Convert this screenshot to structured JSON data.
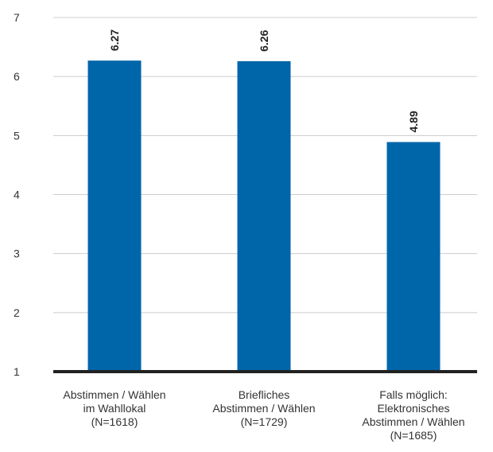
{
  "chart_data": {
    "type": "bar",
    "categories": [
      [
        "Abstimmen / Wählen",
        "im Wahllokal",
        "(N=1618)"
      ],
      [
        "Briefliches",
        "Abstimmen / Wählen",
        "(N=1729)"
      ],
      [
        "Falls möglich:",
        "Elektronisches",
        "Abstimmen / Wählen",
        "(N=1685)"
      ]
    ],
    "values": [
      6.27,
      6.26,
      4.89
    ],
    "data_labels": [
      "6.27",
      "6.26",
      "4.89"
    ],
    "y_ticks": [
      "1",
      "2",
      "3",
      "4",
      "5",
      "6",
      "7"
    ],
    "ylim": [
      1,
      7
    ],
    "grid": true,
    "colors": {
      "bar": "#0066aa",
      "grid": "#cccccc",
      "baseline": "#222222",
      "text": "#333333",
      "label": "#222222"
    }
  }
}
